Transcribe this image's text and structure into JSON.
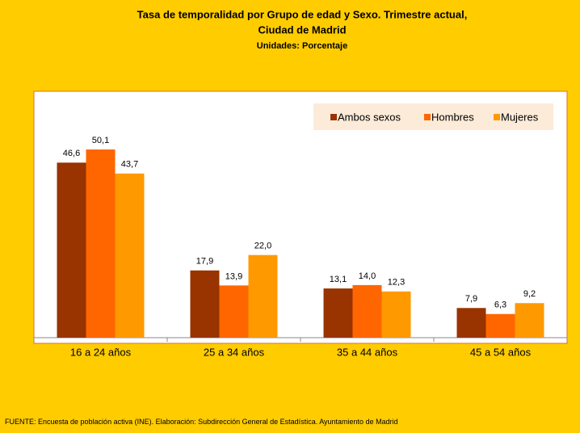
{
  "chart_data": {
    "type": "bar",
    "title": [
      "Tasa de temporalidad por Grupo de edad y Sexo. Trimestre actual,",
      "Ciudad de Madrid"
    ],
    "subtitle": "Unidades: Porcentaje",
    "categories": [
      "16 a 24 años",
      "25 a 34 años",
      "35 a 44 años",
      "45 a 54 años"
    ],
    "series": [
      {
        "name": "Ambos sexos",
        "color": "#993300",
        "values": [
          46.6,
          17.9,
          13.1,
          7.9
        ],
        "value_labels": [
          "46,6",
          "17,9",
          "13,1",
          "7,9"
        ]
      },
      {
        "name": "Hombres",
        "color": "#FF6600",
        "values": [
          50.1,
          13.9,
          14.0,
          6.3
        ],
        "value_labels": [
          "50,1",
          "13,9",
          "14,0",
          "6,3"
        ]
      },
      {
        "name": "Mujeres",
        "color": "#FF9900",
        "values": [
          43.7,
          22.0,
          12.3,
          9.2
        ],
        "value_labels": [
          "43,7",
          "22,0",
          "12,3",
          "9,2"
        ]
      }
    ],
    "ylim": [
      0,
      60
    ],
    "legend": "top-right",
    "source": "FUENTE: Encuesta de población activa (INE). Elaboración: Subdirección General de Estadística. Ayuntamiento de Madrid"
  }
}
